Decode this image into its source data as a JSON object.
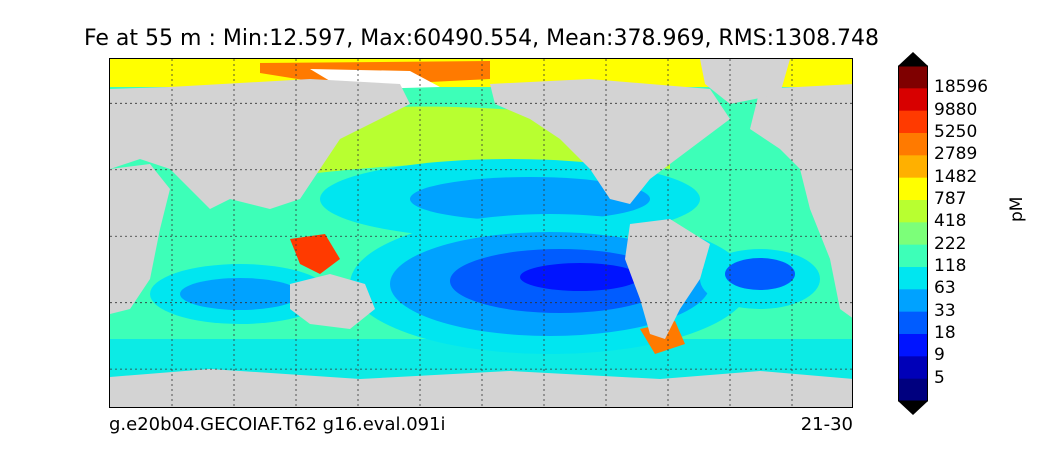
{
  "title": "Fe at 55 m : Min:12.597, Max:60490.554, Mean:378.969, RMS:1308.748",
  "footer": {
    "case_name": "g.e20b04.GECOIAF.T62 g16.eval.091i",
    "years": "21-30"
  },
  "colorbar": {
    "unit": "pM",
    "extend": "both",
    "levels": [
      "18596",
      "9880",
      "5250",
      "2789",
      "1482",
      "787",
      "418",
      "222",
      "118",
      "63",
      "33",
      "18",
      "9",
      "5"
    ],
    "colors": [
      "#7f0000",
      "#d80000",
      "#ff3a00",
      "#ff7a00",
      "#ffb000",
      "#ffff00",
      "#b8ff30",
      "#7cff79",
      "#3dffb8",
      "#00e6f0",
      "#00a2ff",
      "#005cff",
      "#0014ff",
      "#0000b8",
      "#00007f"
    ],
    "land_color": "#d3d3d3",
    "no_data_color": "#ffffff"
  },
  "map": {
    "projection": "equirectangular",
    "gridlines": "dotted",
    "grid_lon_step_deg": 30,
    "grid_lat_step_deg": 30
  }
}
